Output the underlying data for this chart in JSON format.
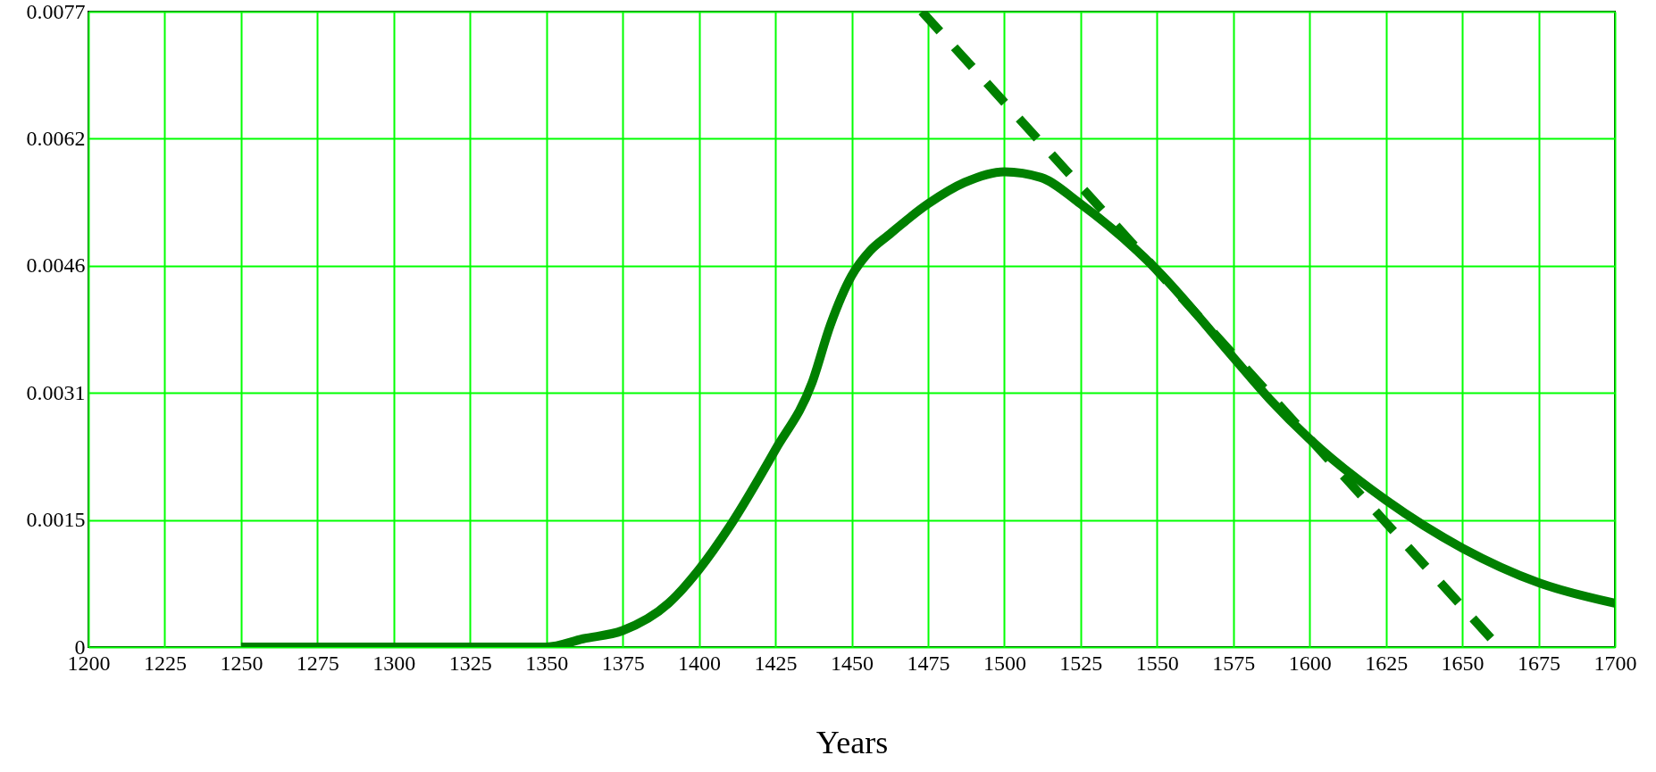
{
  "chart_data": {
    "type": "line",
    "xlabel": "Years",
    "xlim": [
      1200,
      1700
    ],
    "xticks": [
      1200,
      1225,
      1250,
      1275,
      1300,
      1325,
      1350,
      1375,
      1400,
      1425,
      1450,
      1475,
      1500,
      1525,
      1550,
      1575,
      1600,
      1625,
      1650,
      1675,
      1700
    ],
    "ylim": [
      0,
      0.0077
    ],
    "yticks": [
      0,
      {
        "value": 0.00154,
        "label": "0.0015"
      },
      {
        "value": 0.00308,
        "label": "0.0031"
      },
      {
        "value": 0.00462,
        "label": "0.0046"
      },
      {
        "value": 0.00616,
        "label": "0.0062"
      },
      0.0077
    ],
    "grid": true,
    "series": [
      {
        "color": "#008000",
        "line_style": "solid",
        "x": [
          1250,
          1275,
          1300,
          1325,
          1350,
          1362,
          1375,
          1390,
          1400,
          1410,
          1425,
          1437,
          1443,
          1450,
          1456,
          1462,
          1475,
          1487,
          1500,
          1512,
          1525,
          1550,
          1575,
          1587,
          1600,
          1625,
          1650,
          1675,
          1700
        ],
        "values": [
          0,
          0,
          0,
          0,
          0,
          0.0001,
          0.0002,
          0.00053,
          0.00094,
          0.00146,
          0.00239,
          0.0032,
          0.0039,
          0.0045,
          0.0048,
          0.00499,
          0.00537,
          0.00563,
          0.00576,
          0.00569,
          0.00537,
          0.00457,
          0.00351,
          0.003,
          0.00252,
          0.00178,
          0.0012,
          0.00078,
          0.00053
        ]
      },
      {
        "color": "#008000",
        "line_style": "dashed",
        "x": [
          1473,
          1662
        ],
        "values": [
          0.0077,
          0
        ]
      }
    ]
  }
}
